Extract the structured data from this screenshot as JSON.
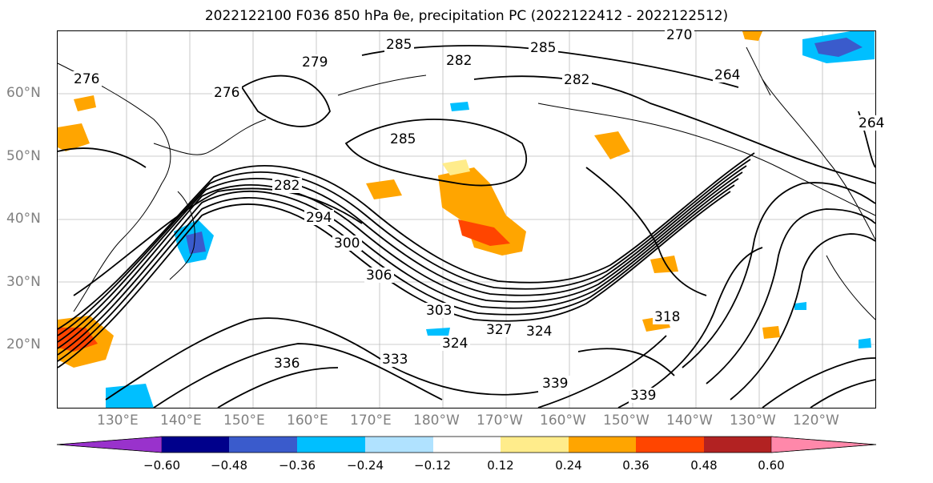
{
  "title": "2022122100 F036 850 hPa θe, precipitation PC (2022122412 - 2022122512)",
  "lat_labels": [
    "60°N",
    "50°N",
    "40°N",
    "30°N",
    "20°N"
  ],
  "lon_labels": [
    "130°E",
    "140°E",
    "150°E",
    "160°E",
    "170°E",
    "180°W",
    "170°W",
    "160°W",
    "150°W",
    "140°W",
    "130°W",
    "120°W"
  ],
  "contour_labels": [
    "285",
    "285",
    "279",
    "282",
    "276",
    "270",
    "264",
    "264",
    "282",
    "285",
    "282",
    "294",
    "300",
    "306",
    "303",
    "327",
    "324",
    "324",
    "336",
    "333",
    "339",
    "339",
    "318",
    "276"
  ],
  "colorbar": {
    "ticks": [
      "−0.60",
      "−0.48",
      "−0.36",
      "−0.24",
      "−0.12",
      "0.12",
      "0.24",
      "0.36",
      "0.48",
      "0.60"
    ],
    "colors": [
      "#9932cc",
      "#00008b",
      "#3a5bcc",
      "#00bfff",
      "#b0e2ff",
      "#ffffff",
      "#ffec8b",
      "#ffa500",
      "#ff4500",
      "#b22222",
      "#ff88aa"
    ]
  },
  "chart_data": {
    "type": "map",
    "projection": "plate carree",
    "lon_range": [
      "120°E",
      "115°W"
    ],
    "lat_range": [
      "10°N",
      "70°N"
    ],
    "field_contours": "850 hPa theta-e (K)",
    "field_shaded": "precipitation PC",
    "levels": [
      -0.6,
      -0.48,
      -0.36,
      -0.24,
      -0.12,
      0.12,
      0.24,
      0.36,
      0.48,
      0.6
    ],
    "grid": true
  }
}
